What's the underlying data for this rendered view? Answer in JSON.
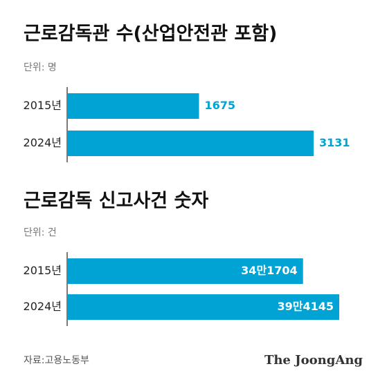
{
  "chart_data": [
    {
      "type": "hbar",
      "title": "근로감독관 수(산업안전관 포함)",
      "subtitle": "단위: 명",
      "categories": [
        "2015년",
        "2024년"
      ],
      "values": [
        1675,
        3131
      ],
      "color": "#00a3d3"
    },
    {
      "type": "hbar",
      "title": "근로감독 신고사건 숫자",
      "subtitle": "단위: 건",
      "categories": [
        "2015년",
        "2024년"
      ],
      "values": [
        341704,
        394145
      ],
      "value_labels": [
        "34만1704",
        "39만4145"
      ],
      "color": "#00a3d3"
    }
  ],
  "source": "자료:고용노동부",
  "brand": "The JoongAng"
}
